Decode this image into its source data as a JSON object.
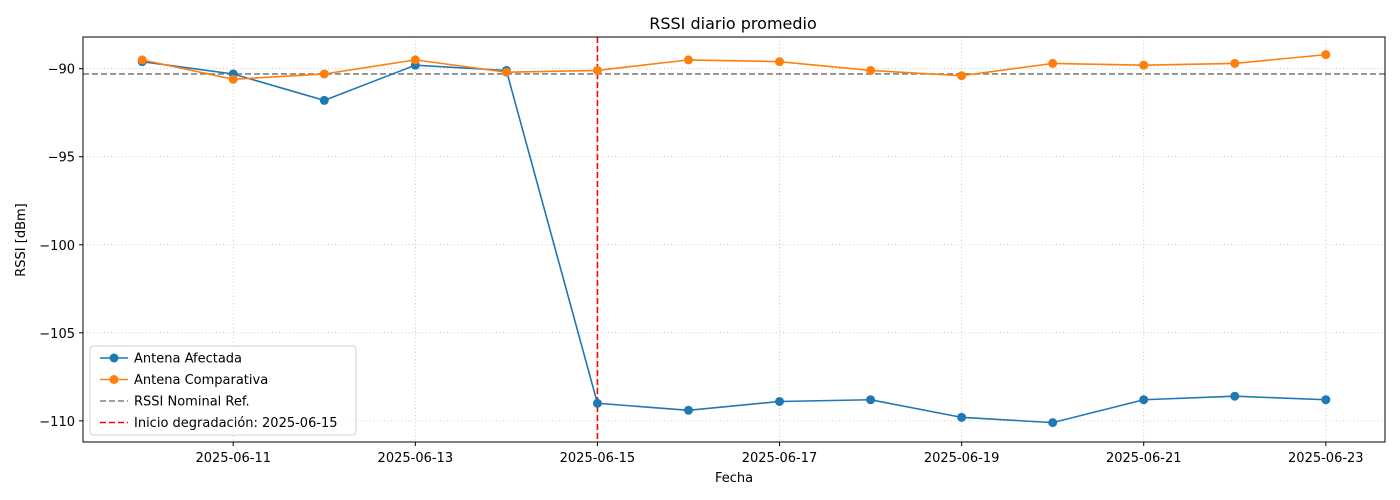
{
  "chart_data": {
    "type": "line",
    "title": "RSSI diario promedio",
    "xlabel": "Fecha",
    "ylabel": "RSSI [dBm]",
    "x": [
      "2025-06-10",
      "2025-06-11",
      "2025-06-12",
      "2025-06-13",
      "2025-06-14",
      "2025-06-15",
      "2025-06-16",
      "2025-06-17",
      "2025-06-18",
      "2025-06-19",
      "2025-06-20",
      "2025-06-21",
      "2025-06-22",
      "2025-06-23"
    ],
    "x_ticks": [
      "2025-06-11",
      "2025-06-13",
      "2025-06-15",
      "2025-06-17",
      "2025-06-19",
      "2025-06-21",
      "2025-06-23"
    ],
    "y_ticks": [
      -90,
      -95,
      -100,
      -105,
      -110
    ],
    "ylim": [
      -111.2,
      -88.2
    ],
    "xlim": [
      "2025-06-09 08:24",
      "2025-06-23 15:36"
    ],
    "grid": true,
    "legend_position": "lower-left",
    "series": [
      {
        "name": "Antena Afectada",
        "color": "#1f77b4",
        "marker": "circle",
        "values": [
          -89.6,
          -90.3,
          -91.8,
          -89.8,
          -90.1,
          -109.0,
          -109.4,
          -108.9,
          -108.8,
          -109.8,
          -110.1,
          -108.8,
          -108.6,
          -108.8
        ]
      },
      {
        "name": "Antena Comparativa",
        "color": "#ff7f0e",
        "marker": "circle",
        "values": [
          -89.5,
          -90.6,
          -90.3,
          -89.5,
          -90.2,
          -90.1,
          -89.5,
          -89.6,
          -90.1,
          -90.4,
          -89.7,
          -89.8,
          -89.7,
          -89.2
        ]
      }
    ],
    "reference_lines": [
      {
        "name": "RSSI Nominal Ref.",
        "orientation": "horizontal",
        "value": -90.3,
        "color": "#808080",
        "style": "dashed"
      },
      {
        "name": "Inicio degradación: 2025-06-15",
        "orientation": "vertical",
        "value": "2025-06-15",
        "color": "#ff0000",
        "style": "dashed"
      }
    ]
  }
}
